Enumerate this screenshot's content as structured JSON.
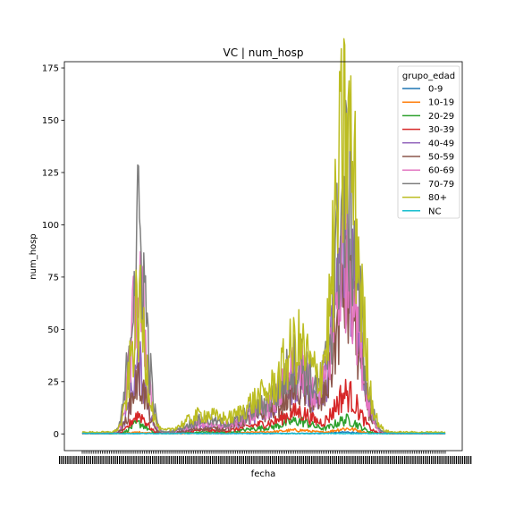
{
  "chart_data": {
    "type": "line",
    "title": "VC | num_hosp",
    "xlabel": "fecha",
    "ylabel": "num_hosp",
    "ylim": [
      -8,
      178
    ],
    "yticks": [
      0,
      25,
      50,
      75,
      100,
      125,
      150,
      175
    ],
    "x_ticks_note": "date tick labels overlap and are illegible",
    "grid": false,
    "legend": {
      "title": "grupo_edad",
      "placement": "upper right"
    },
    "n_points": 420,
    "series": [
      {
        "name": "0-9",
        "color": "#1f77b4",
        "peak_values": [
          0,
          0,
          0,
          0,
          1
        ],
        "baseline": 0
      },
      {
        "name": "10-19",
        "color": "#ff7f0e",
        "peak_values": [
          1,
          0,
          1,
          2,
          3
        ],
        "baseline": 0
      },
      {
        "name": "20-29",
        "color": "#2ca02c",
        "peak_values": [
          6,
          1,
          3,
          7,
          8
        ],
        "baseline": 0
      },
      {
        "name": "30-39",
        "color": "#d62728",
        "peak_values": [
          11,
          2,
          5,
          12,
          23
        ],
        "baseline": 0
      },
      {
        "name": "40-49",
        "color": "#9467bd",
        "peak_values": [
          38,
          4,
          11,
          30,
          108
        ],
        "baseline": 0
      },
      {
        "name": "50-59",
        "color": "#8c564b",
        "peak_values": [
          30,
          3,
          10,
          25,
          80
        ],
        "baseline": 0
      },
      {
        "name": "60-69",
        "color": "#e377c2",
        "peak_values": [
          80,
          6,
          12,
          35,
          105
        ],
        "baseline": 0
      },
      {
        "name": "70-79",
        "color": "#7f7f7f",
        "peak_values": [
          113,
          8,
          14,
          40,
          138
        ],
        "baseline": 0
      },
      {
        "name": "80+",
        "color": "#bcbd22",
        "peak_values": [
          68,
          10,
          18,
          47,
          170
        ],
        "baseline": 1
      },
      {
        "name": "NC",
        "color": "#17becf",
        "peak_values": [
          0,
          0,
          0,
          0,
          0
        ],
        "baseline": 0
      }
    ]
  }
}
